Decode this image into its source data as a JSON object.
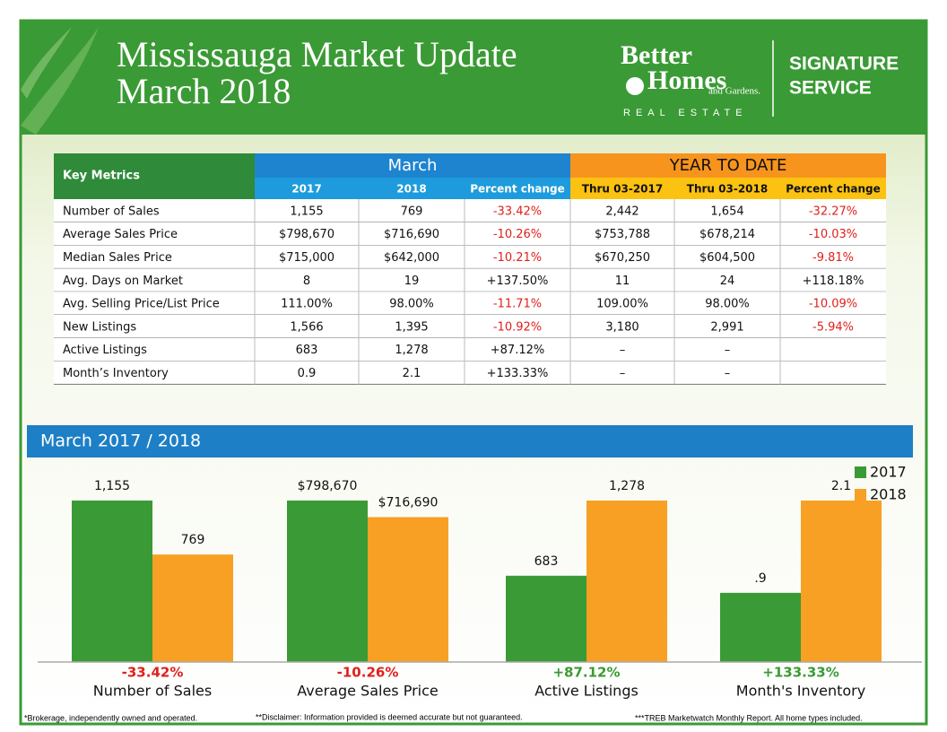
{
  "header": {
    "title_line1": "Mississauga Market Update",
    "title_line2": "March  2018",
    "logo_line1": "Better",
    "logo_line2": "Homes",
    "logo_line3": "and Gardens.",
    "logo_line4": "REAL ESTATE",
    "badge_line1": "SIGNATURE",
    "badge_line2": "SERVICE"
  },
  "table": {
    "corner": "Key Metrics",
    "group1": "March",
    "group2": "YEAR TO DATE",
    "columns": [
      "2017",
      "2018",
      "Percent change",
      "Thru 03-2017",
      "Thru 03-2018",
      "Percent change"
    ],
    "rows": [
      [
        "Number of Sales",
        "1,155",
        "769",
        "-33.42%",
        "2,442",
        "1,654",
        "-32.27%"
      ],
      [
        "Average Sales Price",
        "$798,670",
        "$716,690",
        "-10.26%",
        "$753,788",
        "$678,214",
        "-10.03%"
      ],
      [
        "Median Sales Price",
        "$715,000",
        "$642,000",
        "-10.21%",
        "$670,250",
        "$604,500",
        "-9.81%"
      ],
      [
        "Avg. Days on Market",
        "8",
        "19",
        "+137.50%",
        "11",
        "24",
        "+118.18%"
      ],
      [
        "Avg. Selling Price/List Price",
        "111.00%",
        "98.00%",
        "-11.71%",
        "109.00%",
        "98.00%",
        "-10.09%"
      ],
      [
        "New Listings",
        "1,566",
        "1,395",
        "-10.92%",
        "3,180",
        "2,991",
        "-5.94%"
      ],
      [
        "Active Listings",
        "683",
        "1,278",
        "+87.12%",
        "–",
        "–"
      ],
      [
        "Month’s Inventory",
        "0.9",
        "2.1",
        "+133.33%",
        "–",
        "–"
      ]
    ]
  },
  "chart_data": {
    "type": "bar",
    "title": "March 2017 / 2018",
    "categories": [
      "Number of Sales",
      "Average Sales Price",
      "Active Listings",
      "Month's Inventory"
    ],
    "series": [
      {
        "name": "2017",
        "color": "#3a9a35",
        "values": [
          1155,
          798670,
          683,
          0.9
        ],
        "value_labels": [
          "1,155",
          "$798,670",
          "683",
          ".9"
        ]
      },
      {
        "name": "2018",
        "color": "#f7a024",
        "values": [
          769,
          716690,
          1278,
          2.1
        ],
        "value_labels": [
          "769",
          "$716,690",
          "1,278",
          "2.1"
        ]
      }
    ],
    "change_labels": [
      "-33.42%",
      "-10.26%",
      "+87.12%",
      "+133.33%"
    ],
    "negative_color": "#e0201b",
    "positive_color": "#3a9a35"
  },
  "footer": [
    "*Brokerage, independently owned and operated.",
    "**Disclaimer: Information provided is deemed accurate but not guaranteed.",
    "***TREB  Marketwatch Monthly Report. All home types included."
  ]
}
